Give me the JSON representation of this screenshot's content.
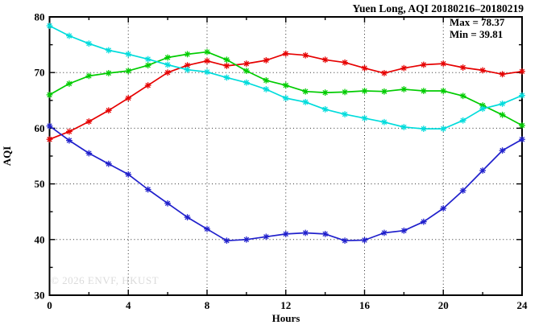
{
  "watermark": "© 2026 ENVF, HKUST",
  "chart_data": {
    "type": "line",
    "title": "Yuen Long, AQI 20180216–20180219",
    "xlabel": "Hours",
    "ylabel": "AQI",
    "xlim": [
      0,
      24
    ],
    "ylim": [
      30,
      80
    ],
    "x_major_ticks": [
      0,
      4,
      8,
      12,
      16,
      20,
      24
    ],
    "x_minor_ticks": [
      2,
      6,
      10,
      14,
      18,
      22
    ],
    "y_major_ticks": [
      30,
      40,
      50,
      60,
      70,
      80
    ],
    "y_minor_ticks": [
      35,
      45,
      55,
      65,
      75
    ],
    "x_gridlines": [
      4,
      8,
      12,
      16,
      20
    ],
    "y_gridlines": [
      40,
      50,
      60,
      70
    ],
    "grid": "dotted",
    "legend": "none",
    "annotations": [
      "Max = 78.37",
      "Min = 39.81"
    ],
    "stats": {
      "max": 78.37,
      "min": 39.81
    },
    "x": [
      0,
      1,
      2,
      3,
      4,
      5,
      6,
      7,
      8,
      9,
      10,
      11,
      12,
      13,
      14,
      15,
      16,
      17,
      18,
      19,
      20,
      21,
      22,
      23,
      24
    ],
    "series": [
      {
        "name": "red",
        "color": "#e60000",
        "values": [
          58.0,
          59.4,
          61.2,
          63.2,
          65.4,
          67.7,
          70.0,
          71.3,
          72.1,
          71.2,
          71.6,
          72.2,
          73.4,
          73.1,
          72.3,
          71.8,
          70.8,
          69.9,
          70.8,
          71.4,
          71.6,
          70.9,
          70.4,
          69.7,
          70.2
        ]
      },
      {
        "name": "green",
        "color": "#00cc00",
        "values": [
          66.0,
          68.0,
          69.4,
          69.9,
          70.3,
          71.3,
          72.7,
          73.3,
          73.7,
          72.3,
          70.3,
          68.6,
          67.7,
          66.6,
          66.4,
          66.5,
          66.7,
          66.6,
          67.0,
          66.7,
          66.7,
          65.8,
          64.1,
          62.4,
          60.5
        ]
      },
      {
        "name": "cyan",
        "color": "#00dcdc",
        "values": [
          78.4,
          76.6,
          75.2,
          74.0,
          73.3,
          72.4,
          71.4,
          70.5,
          70.1,
          69.1,
          68.2,
          67.0,
          65.4,
          64.7,
          63.4,
          62.5,
          61.8,
          61.1,
          60.2,
          59.9,
          59.9,
          61.4,
          63.5,
          64.4,
          65.9
        ]
      },
      {
        "name": "blue",
        "color": "#2020cc",
        "values": [
          60.4,
          57.8,
          55.5,
          53.6,
          51.7,
          49.0,
          46.5,
          44.0,
          41.9,
          39.8,
          40.0,
          40.5,
          41.0,
          41.2,
          41.0,
          39.8,
          39.9,
          41.2,
          41.6,
          43.2,
          45.6,
          48.8,
          52.4,
          56.0,
          58.0
        ]
      }
    ]
  }
}
